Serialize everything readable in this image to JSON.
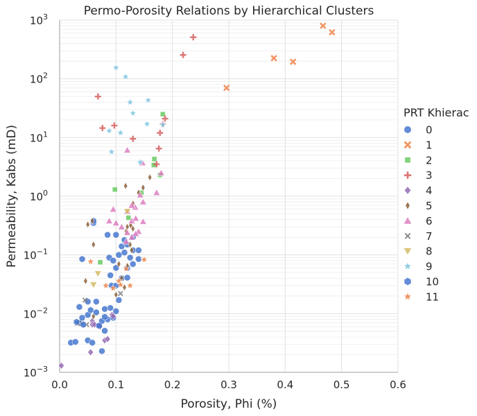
{
  "chart_data": {
    "type": "scatter",
    "title": "Permo-Porosity Relations by Hierarchical Clusters",
    "xlabel": "Porosity, Phi (%)",
    "ylabel": "Permeability, Kabs (mD)",
    "xlim": [
      0,
      0.6
    ],
    "ylim": [
      0.001,
      1000
    ],
    "yscale": "log",
    "grid": true,
    "x_ticks": [
      0,
      0.1,
      0.2,
      0.3,
      0.4,
      0.5,
      0.6
    ],
    "x_tick_labels": [
      "0.0",
      "0.1",
      "0.2",
      "0.3",
      "0.4",
      "0.5",
      "0.6"
    ],
    "y_ticks": [
      0.001,
      0.01,
      0.1,
      1,
      10,
      100,
      1000
    ],
    "y_tick_base": "10",
    "y_tick_exponents": [
      "−3",
      "−2",
      "−1",
      "0",
      "1",
      "2",
      "3"
    ],
    "legend": {
      "title": "PRT Khierac",
      "placement": "right"
    },
    "series": [
      {
        "name": "0",
        "marker": "circle",
        "color": "#4878d0",
        "points": [
          [
            0.02,
            0.0032
          ],
          [
            0.028,
            0.0033
          ],
          [
            0.035,
            0.007
          ],
          [
            0.04,
            0.0085
          ],
          [
            0.05,
            0.0035
          ],
          [
            0.058,
            0.0032
          ],
          [
            0.075,
            0.0023
          ],
          [
            0.07,
            0.0063
          ],
          [
            0.08,
            0.0051
          ],
          [
            0.085,
            0.008
          ],
          [
            0.09,
            0.0125
          ],
          [
            0.095,
            0.0085
          ],
          [
            0.1,
            0.011
          ],
          [
            0.05,
            0.016
          ],
          [
            0.065,
            0.016
          ],
          [
            0.08,
            0.012
          ],
          [
            0.092,
            0.03
          ],
          [
            0.1,
            0.03
          ],
          [
            0.11,
            0.04
          ],
          [
            0.12,
            0.06
          ],
          [
            0.13,
            0.07
          ],
          [
            0.09,
            0.045
          ],
          [
            0.1,
            0.06
          ],
          [
            0.088,
            0.09
          ],
          [
            0.095,
            0.08
          ],
          [
            0.105,
            0.1
          ],
          [
            0.115,
            0.11
          ],
          [
            0.13,
            0.12
          ],
          [
            0.125,
            0.09
          ],
          [
            0.14,
            0.085
          ],
          [
            0.11,
            0.14
          ],
          [
            0.12,
            0.15
          ],
          [
            0.13,
            0.2
          ],
          [
            0.115,
            0.18
          ],
          [
            0.085,
            0.22
          ],
          [
            0.1,
            0.22
          ],
          [
            0.06,
            0.35
          ],
          [
            0.06,
            0.38
          ],
          [
            0.04,
            0.085
          ],
          [
            0.035,
            0.013
          ],
          [
            0.05,
            0.0095
          ],
          [
            0.075,
            0.0075
          ],
          [
            0.12,
            0.041
          ],
          [
            0.105,
            0.017
          ],
          [
            0.14,
            0.12
          ]
        ]
      },
      {
        "name": "1",
        "marker": "x",
        "color": "#ee854a",
        "points": [
          [
            0.467,
            800
          ],
          [
            0.483,
            620
          ],
          [
            0.38,
            225
          ],
          [
            0.414,
            195
          ],
          [
            0.296,
            70
          ]
        ]
      },
      {
        "name": "2",
        "marker": "square",
        "color": "#6acc64",
        "points": [
          [
            0.183,
            25
          ],
          [
            0.168,
            4.3
          ],
          [
            0.167,
            3.4
          ],
          [
            0.178,
            2.3
          ],
          [
            0.098,
            1.3
          ],
          [
            0.122,
            0.43
          ],
          [
            0.145,
            1.15
          ],
          [
            0.072,
            0.075
          ]
        ]
      },
      {
        "name": "3",
        "marker": "plus",
        "color": "#d65f5f",
        "points": [
          [
            0.237,
            510
          ],
          [
            0.219,
            255
          ],
          [
            0.068,
            50
          ],
          [
            0.097,
            16
          ],
          [
            0.076,
            14.5
          ],
          [
            0.13,
            9.5
          ],
          [
            0.187,
            21
          ],
          [
            0.183,
            17
          ],
          [
            0.178,
            12
          ],
          [
            0.176,
            6.5
          ],
          [
            0.172,
            3.5
          ]
        ]
      },
      {
        "name": "4",
        "marker": "diamond",
        "color": "#956cb4",
        "points": [
          [
            0.003,
            0.0013
          ],
          [
            0.055,
            0.0022
          ],
          [
            0.08,
            0.0035
          ],
          [
            0.085,
            0.0037
          ],
          [
            0.058,
            0.0075
          ],
          [
            0.072,
            0.006
          ],
          [
            0.093,
            0.0095
          ],
          [
            0.058,
            0.0065
          ],
          [
            0.095,
            0.009
          ],
          [
            0.062,
            0.0065
          ]
        ]
      },
      {
        "name": "5",
        "marker": "diamond-thin",
        "color": "#8c613c",
        "points": [
          [
            0.05,
            0.33
          ],
          [
            0.058,
            0.38
          ],
          [
            0.06,
            0.15
          ],
          [
            0.046,
            0.036
          ],
          [
            0.1,
            0.021
          ],
          [
            0.115,
            0.028
          ],
          [
            0.12,
            0.3
          ],
          [
            0.126,
            0.32
          ],
          [
            0.13,
            0.75
          ],
          [
            0.117,
            1.5
          ],
          [
            0.14,
            1.15
          ],
          [
            0.148,
            1.4
          ],
          [
            0.16,
            2.1
          ],
          [
            0.125,
            0.15
          ],
          [
            0.128,
            0.12
          ],
          [
            0.105,
            0.07
          ],
          [
            0.11,
            0.04
          ],
          [
            0.12,
            0.065
          ],
          [
            0.06,
            0.009
          ],
          [
            0.118,
            0.25
          ],
          [
            0.13,
            0.28
          ]
        ]
      },
      {
        "name": "6",
        "marker": "triangle",
        "color": "#dc7ec0",
        "points": [
          [
            0.18,
            2.5
          ],
          [
            0.172,
            1.15
          ],
          [
            0.143,
            1.05
          ],
          [
            0.148,
            0.8
          ],
          [
            0.134,
            0.65
          ],
          [
            0.128,
            0.7
          ],
          [
            0.12,
            0.55
          ],
          [
            0.095,
            0.6
          ],
          [
            0.088,
            0.38
          ],
          [
            0.1,
            0.35
          ],
          [
            0.11,
            0.3
          ],
          [
            0.128,
            0.38
          ],
          [
            0.135,
            0.42
          ],
          [
            0.148,
            0.37
          ],
          [
            0.14,
            0.25
          ],
          [
            0.135,
            0.23
          ],
          [
            0.128,
            0.2
          ],
          [
            0.118,
            0.17
          ],
          [
            0.12,
            6.1
          ],
          [
            0.147,
            3.7
          ],
          [
            0.12,
            0.24
          ]
        ]
      },
      {
        "name": "7",
        "marker": "x-thin",
        "color": "#797979",
        "points": [
          [
            0.045,
            0.017
          ],
          [
            0.048,
            0.0065
          ],
          [
            0.04,
            0.0068
          ],
          [
            0.032,
            0.0068
          ],
          [
            0.108,
            0.022
          ]
        ]
      },
      {
        "name": "8",
        "marker": "triangle-down",
        "color": "#d5bb67",
        "points": [
          [
            0.06,
            0.031
          ],
          [
            0.068,
            0.048
          ],
          [
            0.12,
            0.55
          ]
        ]
      },
      {
        "name": "9",
        "marker": "star",
        "color": "#82c6e2",
        "points": [
          [
            0.1,
            155
          ],
          [
            0.117,
            108
          ],
          [
            0.157,
            43
          ],
          [
            0.125,
            40
          ],
          [
            0.13,
            26
          ],
          [
            0.155,
            17
          ],
          [
            0.183,
            16.5
          ],
          [
            0.088,
            13
          ],
          [
            0.108,
            12
          ],
          [
            0.092,
            5.7
          ],
          [
            0.143,
            3.8
          ]
        ]
      },
      {
        "name": "10",
        "marker": "hexagon",
        "color": "#4878d0",
        "points": [
          [
            0.03,
            0.0072
          ],
          [
            0.042,
            0.0065
          ],
          [
            0.055,
            0.0115
          ],
          [
            0.065,
            0.0105
          ],
          [
            0.08,
            0.0088
          ],
          [
            0.07,
            0.0062
          ]
        ]
      },
      {
        "name": "11",
        "marker": "star",
        "color": "#ee854a",
        "points": [
          [
            0.055,
            0.077
          ],
          [
            0.15,
            0.083
          ],
          [
            0.118,
            0.058
          ],
          [
            0.105,
            0.036
          ],
          [
            0.108,
            0.031
          ],
          [
            0.125,
            0.03
          ],
          [
            0.082,
            0.03
          ],
          [
            0.095,
            0.027
          ]
        ]
      }
    ]
  }
}
